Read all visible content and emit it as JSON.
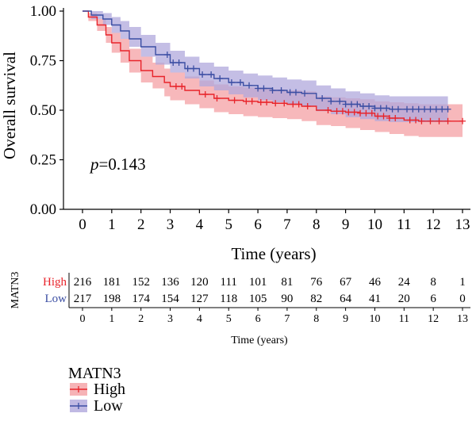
{
  "chart_data": {
    "type": "line",
    "subtype": "kaplan-meier",
    "title": "",
    "xlabel": "Time (years)",
    "ylabel": "Overall survival",
    "xlim": [
      0,
      13
    ],
    "ylim": [
      0,
      1
    ],
    "x_ticks": [
      0,
      1,
      2,
      3,
      4,
      5,
      6,
      7,
      8,
      9,
      10,
      11,
      12,
      13
    ],
    "y_ticks": [
      "0.00",
      "0.25",
      "0.50",
      "0.75",
      "1.00"
    ],
    "annotation": {
      "p_symbol": "p",
      "p_value": "=0.143"
    },
    "series": [
      {
        "name": "High",
        "color": "#e8242b",
        "band_color": "#f4a0a4",
        "x": [
          0,
          0.2,
          0.5,
          0.8,
          1.0,
          1.3,
          1.6,
          2.0,
          2.4,
          2.8,
          3.0,
          3.5,
          4.0,
          4.5,
          5.0,
          5.5,
          6.0,
          6.5,
          7.0,
          7.5,
          8.0,
          8.5,
          9.0,
          9.5,
          10.0,
          10.5,
          11.0,
          11.5,
          12.0,
          12.5,
          13.0
        ],
        "y": [
          1.0,
          0.97,
          0.93,
          0.88,
          0.84,
          0.8,
          0.75,
          0.7,
          0.67,
          0.64,
          0.62,
          0.6,
          0.58,
          0.56,
          0.55,
          0.545,
          0.54,
          0.535,
          0.53,
          0.52,
          0.5,
          0.495,
          0.49,
          0.485,
          0.47,
          0.46,
          0.45,
          0.445,
          0.445,
          0.445,
          0.445
        ],
        "lower": [
          1.0,
          0.95,
          0.9,
          0.84,
          0.79,
          0.74,
          0.69,
          0.64,
          0.61,
          0.57,
          0.55,
          0.53,
          0.51,
          0.49,
          0.48,
          0.47,
          0.465,
          0.46,
          0.455,
          0.445,
          0.425,
          0.42,
          0.41,
          0.4,
          0.39,
          0.38,
          0.37,
          0.365,
          0.365,
          0.365,
          0.365
        ],
        "upper": [
          1.0,
          0.99,
          0.96,
          0.92,
          0.89,
          0.86,
          0.81,
          0.77,
          0.74,
          0.71,
          0.69,
          0.67,
          0.65,
          0.63,
          0.62,
          0.615,
          0.61,
          0.605,
          0.6,
          0.595,
          0.57,
          0.565,
          0.56,
          0.555,
          0.545,
          0.54,
          0.535,
          0.53,
          0.53,
          0.53,
          0.53
        ],
        "censor_x": [
          3.2,
          3.4,
          4.2,
          4.6,
          5.2,
          5.6,
          5.8,
          6.1,
          6.3,
          6.6,
          6.9,
          7.2,
          7.4,
          7.7,
          8.4,
          8.7,
          8.9,
          9.1,
          9.3,
          9.5,
          9.7,
          9.9,
          10.1,
          10.3,
          10.5,
          10.7,
          11.2,
          11.4,
          11.6,
          11.9,
          12.2,
          12.5,
          13.0
        ]
      },
      {
        "name": "Low",
        "color": "#3b4ea3",
        "band_color": "#b0a8dc",
        "x": [
          0,
          0.3,
          0.7,
          1.0,
          1.3,
          1.6,
          2.0,
          2.5,
          3.0,
          3.5,
          4.0,
          4.5,
          5.0,
          5.5,
          6.0,
          6.5,
          7.0,
          7.5,
          8.0,
          8.5,
          9.0,
          9.5,
          10.0,
          10.5,
          11.0,
          11.5,
          12.0,
          12.5
        ],
        "y": [
          1.0,
          0.98,
          0.96,
          0.93,
          0.9,
          0.86,
          0.82,
          0.78,
          0.74,
          0.71,
          0.68,
          0.66,
          0.64,
          0.625,
          0.61,
          0.6,
          0.59,
          0.585,
          0.56,
          0.545,
          0.53,
          0.52,
          0.51,
          0.505,
          0.505,
          0.505,
          0.505,
          0.505
        ],
        "lower": [
          1.0,
          0.96,
          0.93,
          0.89,
          0.86,
          0.82,
          0.77,
          0.73,
          0.69,
          0.66,
          0.62,
          0.6,
          0.58,
          0.565,
          0.55,
          0.54,
          0.53,
          0.52,
          0.495,
          0.48,
          0.465,
          0.455,
          0.445,
          0.44,
          0.44,
          0.44,
          0.44,
          0.44
        ],
        "upper": [
          1.0,
          1.0,
          0.99,
          0.97,
          0.95,
          0.92,
          0.88,
          0.84,
          0.8,
          0.77,
          0.74,
          0.72,
          0.7,
          0.685,
          0.675,
          0.665,
          0.655,
          0.65,
          0.625,
          0.61,
          0.595,
          0.585,
          0.575,
          0.57,
          0.57,
          0.57,
          0.57,
          0.57
        ],
        "censor_x": [
          2.9,
          3.1,
          3.3,
          3.6,
          3.8,
          4.1,
          4.4,
          4.7,
          5.1,
          5.4,
          5.7,
          6.0,
          6.2,
          6.5,
          6.8,
          7.1,
          7.3,
          7.6,
          8.2,
          8.5,
          8.8,
          9.0,
          9.2,
          9.4,
          9.6,
          9.8,
          10.0,
          10.2,
          10.4,
          10.6,
          10.8,
          11.1,
          11.3,
          11.5,
          11.7,
          11.9,
          12.1,
          12.3,
          12.5
        ]
      }
    ],
    "risk_table": {
      "group_label": "MATN3",
      "xlabel": "Time (years)",
      "times": [
        0,
        1,
        2,
        3,
        4,
        5,
        6,
        7,
        8,
        9,
        10,
        11,
        12,
        13
      ],
      "rows": [
        {
          "name": "High",
          "color": "#e8242b",
          "counts": [
            216,
            181,
            152,
            136,
            120,
            111,
            101,
            81,
            76,
            67,
            46,
            24,
            8,
            1
          ]
        },
        {
          "name": "Low",
          "color": "#3b4ea3",
          "counts": [
            217,
            198,
            174,
            154,
            127,
            118,
            105,
            90,
            82,
            64,
            41,
            20,
            6,
            0
          ]
        }
      ]
    },
    "legend": {
      "title": "MATN3",
      "position": "bottom-left",
      "items": [
        {
          "label": "High",
          "color": "#e8242b",
          "fill": "#f4a0a4"
        },
        {
          "label": "Low",
          "color": "#3b4ea3",
          "fill": "#b0a8dc"
        }
      ]
    }
  }
}
